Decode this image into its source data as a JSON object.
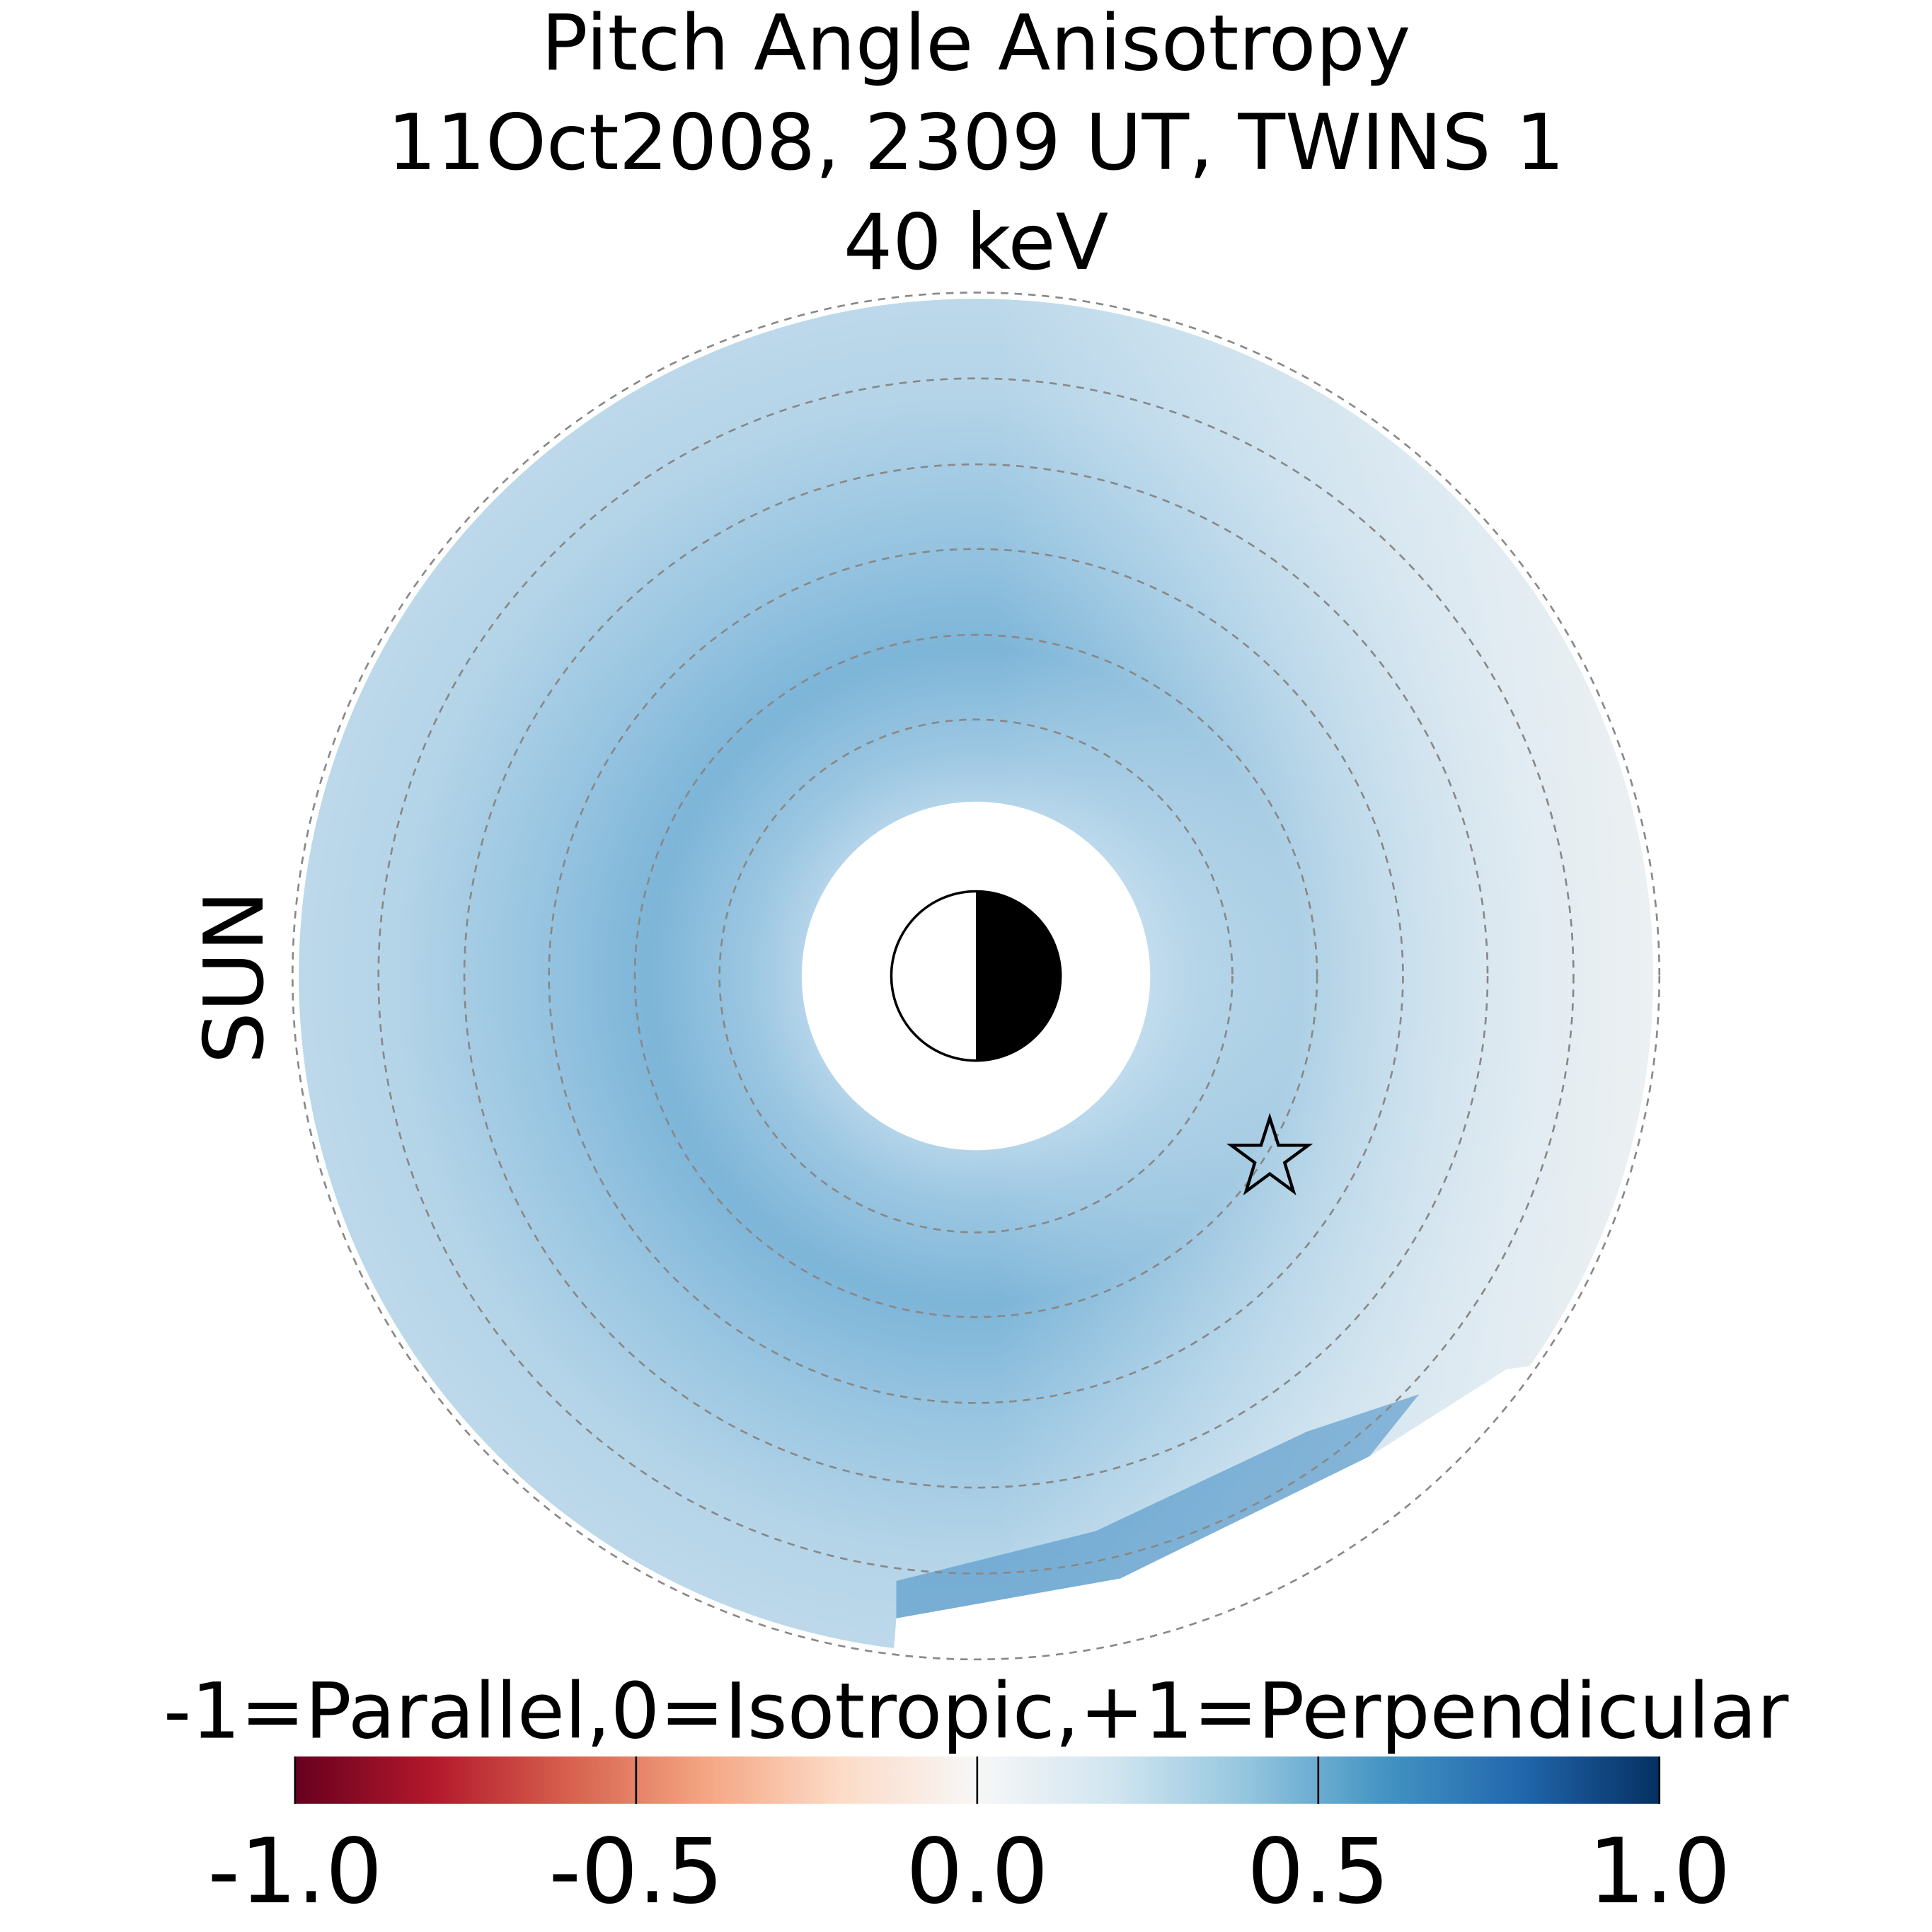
{
  "chart_data": {
    "type": "polar-heatmap",
    "title": [
      "Pitch Angle Anisotropy",
      "11Oct2008, 2309 UT,  TWINS 1",
      "40 keV"
    ],
    "sun_label": "SUN",
    "sun_color": "#ffa500",
    "colorbar_label": "-1=Parallel,0=Isotropic,+1=Perpendicular",
    "clim": [
      -1,
      1
    ],
    "colormap": [
      "#67001f",
      "#b2182b",
      "#d6604d",
      "#f4a582",
      "#fddbc7",
      "#f7f7f7",
      "#d1e5f0",
      "#92c5de",
      "#4393c3",
      "#2166ac",
      "#053061"
    ],
    "cticks": [
      {
        "value": -1,
        "label": "-1.0"
      },
      {
        "value": -0.5,
        "label": "-0.5"
      },
      {
        "value": 0,
        "label": "0.0"
      },
      {
        "value": 0.5,
        "label": "0.5"
      },
      {
        "value": 1,
        "label": "1.0"
      }
    ]
  }
}
